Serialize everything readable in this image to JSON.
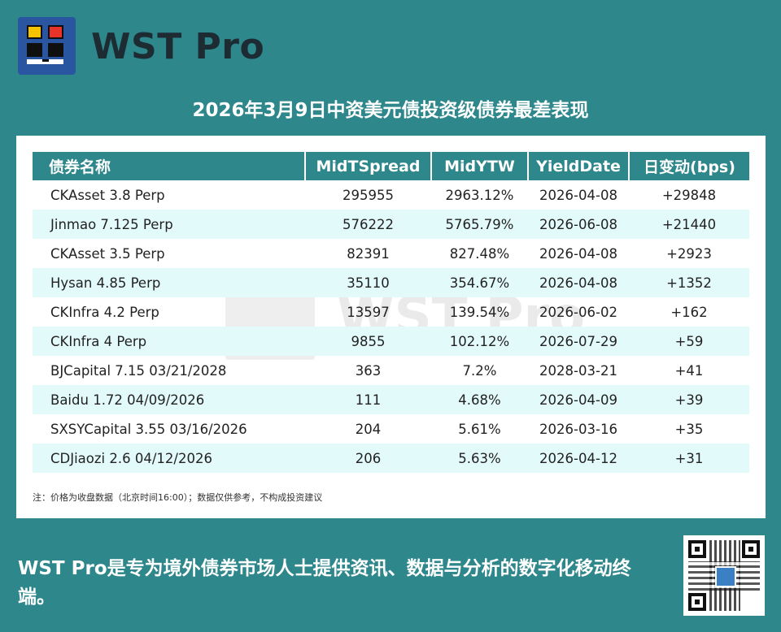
{
  "brand": {
    "name": "WST Pro"
  },
  "title": "2026年3月9日中资美元债投资级债券最差表现",
  "table": {
    "headers": [
      "债券名称",
      "MidTSpread",
      "MidYTW",
      "YieldDate",
      "日变动(bps)"
    ],
    "rows": [
      [
        "CKAsset 3.8 Perp",
        "295955",
        "2963.12%",
        "2026-04-08",
        "+29848"
      ],
      [
        "Jinmao 7.125 Perp",
        "576222",
        "5765.79%",
        "2026-06-08",
        "+21440"
      ],
      [
        "CKAsset 3.5 Perp",
        "82391",
        "827.48%",
        "2026-04-08",
        "+2923"
      ],
      [
        "Hysan 4.85 Perp",
        "35110",
        "354.67%",
        "2026-04-08",
        "+1352"
      ],
      [
        "CKInfra 4.2 Perp",
        "13597",
        "139.54%",
        "2026-06-02",
        "+162"
      ],
      [
        "CKInfra 4 Perp",
        "9855",
        "102.12%",
        "2026-07-29",
        "+59"
      ],
      [
        "BJCapital 7.15 03/21/2028",
        "363",
        "7.2%",
        "2028-03-21",
        "+41"
      ],
      [
        "Baidu 1.72 04/09/2026",
        "111",
        "4.68%",
        "2026-04-09",
        "+39"
      ],
      [
        "SXSYCapital 3.55 03/16/2026",
        "204",
        "5.61%",
        "2026-03-16",
        "+35"
      ],
      [
        "CDJiaozi 2.6 04/12/2026",
        "206",
        "5.63%",
        "2026-04-12",
        "+31"
      ]
    ]
  },
  "watermark": "WST Pro",
  "note": "注：价格为收盘数据（北京时间16:00）；数据仅供参考，不构成投资建议",
  "footer": "WST Pro是专为境外债券市场人士提供资讯、数据与分析的数字化移动终端。",
  "colors": {
    "background": "#2e878b",
    "header": "#2e878b",
    "alt_row": "#e3fafb",
    "logo": "#2a55a0"
  },
  "icons": {
    "logo": "wst-logo-icon",
    "qr": "qr-code-icon"
  }
}
